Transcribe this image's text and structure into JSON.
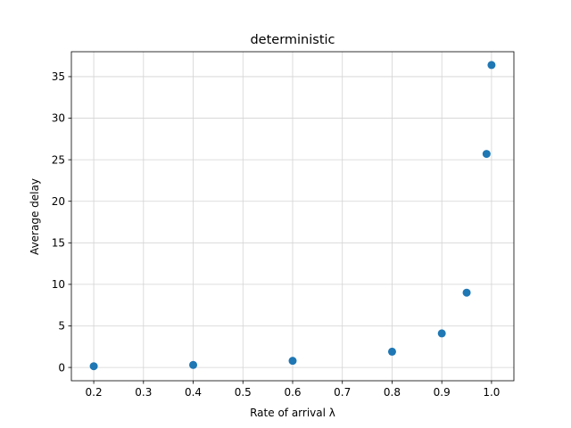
{
  "chart_data": {
    "type": "scatter",
    "title": "deterministic",
    "xlabel": "Rate of arrival λ",
    "ylabel": "Average delay",
    "xlim": [
      0.155,
      1.045
    ],
    "ylim": [
      -1.6,
      38.0
    ],
    "xticks": [
      0.2,
      0.3,
      0.4,
      0.5,
      0.6,
      0.7,
      0.8,
      0.9,
      1.0
    ],
    "xtick_labels": [
      "0.2",
      "0.3",
      "0.4",
      "0.5",
      "0.6",
      "0.7",
      "0.8",
      "0.9",
      "1.0"
    ],
    "yticks": [
      0,
      5,
      10,
      15,
      20,
      25,
      30,
      35
    ],
    "ytick_labels": [
      "0",
      "5",
      "10",
      "15",
      "20",
      "25",
      "30",
      "35"
    ],
    "grid": true,
    "legend": "none",
    "marker_color": "#1f77b4",
    "grid_color": "#d3d3d3",
    "series": [
      {
        "points": [
          {
            "x": 0.2,
            "y": 0.15
          },
          {
            "x": 0.4,
            "y": 0.3
          },
          {
            "x": 0.6,
            "y": 0.8
          },
          {
            "x": 0.8,
            "y": 1.9
          },
          {
            "x": 0.9,
            "y": 4.1
          },
          {
            "x": 0.95,
            "y": 9.0
          },
          {
            "x": 0.99,
            "y": 25.7
          },
          {
            "x": 1.0,
            "y": 36.4
          }
        ]
      }
    ]
  }
}
